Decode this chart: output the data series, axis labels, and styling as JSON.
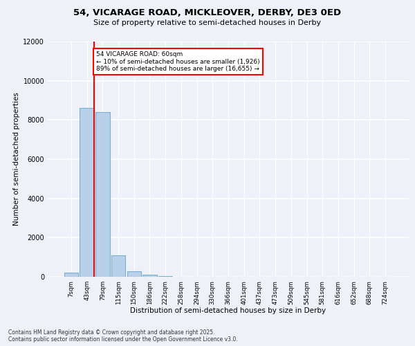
{
  "title_line1": "54, VICARAGE ROAD, MICKLEOVER, DERBY, DE3 0ED",
  "title_line2": "Size of property relative to semi-detached houses in Derby",
  "xlabel": "Distribution of semi-detached houses by size in Derby",
  "ylabel": "Number of semi-detached properties",
  "categories": [
    "7sqm",
    "43sqm",
    "79sqm",
    "115sqm",
    "150sqm",
    "186sqm",
    "222sqm",
    "258sqm",
    "294sqm",
    "330sqm",
    "366sqm",
    "401sqm",
    "437sqm",
    "473sqm",
    "509sqm",
    "545sqm",
    "581sqm",
    "616sqm",
    "652sqm",
    "688sqm",
    "724sqm"
  ],
  "values": [
    200,
    8600,
    8400,
    1100,
    300,
    100,
    30,
    0,
    0,
    0,
    0,
    0,
    0,
    0,
    0,
    0,
    0,
    0,
    0,
    0,
    0
  ],
  "bar_color": "#b8d0ea",
  "bar_edge_color": "#7aafd4",
  "red_line_index": 1.5,
  "annotation_box_text": "54 VICARAGE ROAD: 60sqm\n← 10% of semi-detached houses are smaller (1,926)\n89% of semi-detached houses are larger (16,655) →",
  "ylim": [
    0,
    12000
  ],
  "yticks": [
    0,
    2000,
    4000,
    6000,
    8000,
    10000,
    12000
  ],
  "background_color": "#eef2f8",
  "grid_color": "#ffffff",
  "footer_line1": "Contains HM Land Registry data © Crown copyright and database right 2025.",
  "footer_line2": "Contains public sector information licensed under the Open Government Licence v3.0."
}
